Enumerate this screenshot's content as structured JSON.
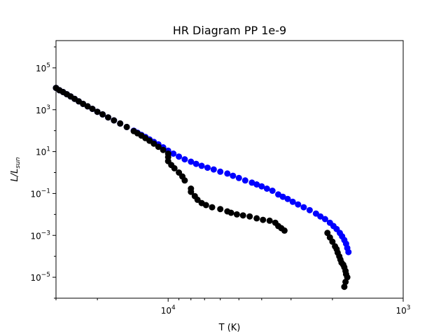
{
  "chart_data": {
    "type": "scatter",
    "title": "HR Diagram PP 1e-9",
    "xlabel": "T (K)",
    "ylabel_main": "L/L",
    "ylabel_sub": "sun",
    "x_scale": "log",
    "y_scale": "log",
    "x_inverted": true,
    "xlim": [
      30000,
      1000
    ],
    "ylim": [
      1e-06,
      2000000.0
    ],
    "grid": false,
    "x_ticks": [
      {
        "value": 10000,
        "base": "10",
        "exp": "4"
      },
      {
        "value": 1000,
        "base": "10",
        "exp": "3"
      }
    ],
    "y_ticks": [
      {
        "value": 1e-05,
        "base": "10",
        "exp": "−5"
      },
      {
        "value": 0.001,
        "base": "10",
        "exp": "−3"
      },
      {
        "value": 0.1,
        "base": "10",
        "exp": "−1"
      },
      {
        "value": 10,
        "base": "10",
        "exp": "1"
      },
      {
        "value": 1000,
        "base": "10",
        "exp": "3"
      },
      {
        "value": 100000,
        "base": "10",
        "exp": "5"
      }
    ],
    "series": [
      {
        "color": "#0000ff",
        "points": [
          [
            30000,
            11000
          ],
          [
            29000,
            8500
          ],
          [
            28000,
            7000
          ],
          [
            27000,
            5500
          ],
          [
            26000,
            4300
          ],
          [
            25000,
            3300
          ],
          [
            24000,
            2500
          ],
          [
            23000,
            1900
          ],
          [
            22000,
            1450
          ],
          [
            21000,
            1100
          ],
          [
            20000,
            800
          ],
          [
            19000,
            600
          ],
          [
            18000,
            430
          ],
          [
            17000,
            310
          ],
          [
            16000,
            220
          ],
          [
            15000,
            150
          ],
          [
            14000,
            100
          ],
          [
            13500,
            80
          ],
          [
            13000,
            63
          ],
          [
            12500,
            50
          ],
          [
            12000,
            38
          ],
          [
            11500,
            29
          ],
          [
            11000,
            22
          ],
          [
            10500,
            16
          ],
          [
            10000,
            11
          ],
          [
            9500,
            8
          ],
          [
            9000,
            5.8
          ],
          [
            8500,
            4.3
          ],
          [
            8000,
            3.3
          ],
          [
            7600,
            2.6
          ],
          [
            7200,
            2.1
          ],
          [
            6800,
            1.7
          ],
          [
            6400,
            1.4
          ],
          [
            6000,
            1.1
          ],
          [
            5600,
            0.9
          ],
          [
            5300,
            0.7
          ],
          [
            5000,
            0.55
          ],
          [
            4700,
            0.42
          ],
          [
            4400,
            0.33
          ],
          [
            4200,
            0.27
          ],
          [
            4000,
            0.22
          ],
          [
            3800,
            0.17
          ],
          [
            3600,
            0.135
          ],
          [
            3400,
            0.09
          ],
          [
            3250,
            0.07
          ],
          [
            3100,
            0.055
          ],
          [
            2950,
            0.04
          ],
          [
            2800,
            0.03
          ],
          [
            2650,
            0.022
          ],
          [
            2500,
            0.016
          ],
          [
            2350,
            0.011
          ],
          [
            2250,
            0.008
          ],
          [
            2150,
            0.006
          ],
          [
            2050,
            0.004
          ],
          [
            1980,
            0.0028
          ],
          [
            1920,
            0.002
          ],
          [
            1860,
            0.0013
          ],
          [
            1820,
            0.0009
          ],
          [
            1780,
            0.0006
          ],
          [
            1750,
            0.0004
          ],
          [
            1730,
            0.00025
          ],
          [
            1710,
            0.00016
          ]
        ]
      },
      {
        "color": "#000000",
        "points": [
          [
            30000,
            11000
          ],
          [
            29000,
            8500
          ],
          [
            28000,
            7000
          ],
          [
            27000,
            5500
          ],
          [
            26000,
            4300
          ],
          [
            25000,
            3300
          ],
          [
            24000,
            2500
          ],
          [
            23000,
            1900
          ],
          [
            22000,
            1450
          ],
          [
            21000,
            1100
          ],
          [
            20000,
            800
          ],
          [
            19000,
            600
          ],
          [
            18000,
            430
          ],
          [
            17000,
            310
          ],
          [
            16000,
            220
          ],
          [
            15000,
            150
          ],
          [
            14000,
            95
          ],
          [
            13500,
            75
          ],
          [
            13000,
            58
          ],
          [
            12500,
            44
          ],
          [
            12000,
            33
          ],
          [
            11500,
            24
          ],
          [
            11000,
            17
          ],
          [
            10500,
            12
          ],
          [
            10000,
            8
          ],
          [
            10000,
            5.5
          ],
          [
            10000,
            3.5
          ],
          [
            9700,
            2.3
          ],
          [
            9400,
            1.6
          ],
          [
            9000,
            1.0
          ],
          [
            8700,
            0.65
          ],
          [
            8500,
            0.42
          ],
          [
            8000,
            0.17
          ],
          [
            8000,
            0.12
          ],
          [
            7700,
            0.075
          ],
          [
            7500,
            0.05
          ],
          [
            7200,
            0.035
          ],
          [
            6900,
            0.028
          ],
          [
            6500,
            0.022
          ],
          [
            6000,
            0.018
          ],
          [
            5600,
            0.014
          ],
          [
            5400,
            0.012
          ],
          [
            5100,
            0.01
          ],
          [
            4800,
            0.009
          ],
          [
            4500,
            0.008
          ],
          [
            4200,
            0.0065
          ],
          [
            3950,
            0.0055
          ],
          [
            3700,
            0.005
          ],
          [
            3500,
            0.004
          ],
          [
            3400,
            0.0028
          ],
          [
            3300,
            0.0022
          ],
          [
            3200,
            0.0017
          ],
          [
            2100,
            0.0013
          ],
          [
            2050,
            0.0008
          ],
          [
            2000,
            0.0005
          ],
          [
            1950,
            0.0003
          ],
          [
            1920,
            0.00022
          ],
          [
            1900,
            0.00015
          ],
          [
            1870,
            0.0001
          ],
          [
            1850,
            7e-05
          ],
          [
            1830,
            5e-05
          ],
          [
            1800,
            4e-05
          ],
          [
            1780,
            3e-05
          ],
          [
            1760,
            2e-05
          ],
          [
            1750,
            1.4e-05
          ],
          [
            1730,
            1e-05
          ],
          [
            1760,
            6e-06
          ],
          [
            1780,
            3.5e-06
          ]
        ]
      }
    ]
  }
}
